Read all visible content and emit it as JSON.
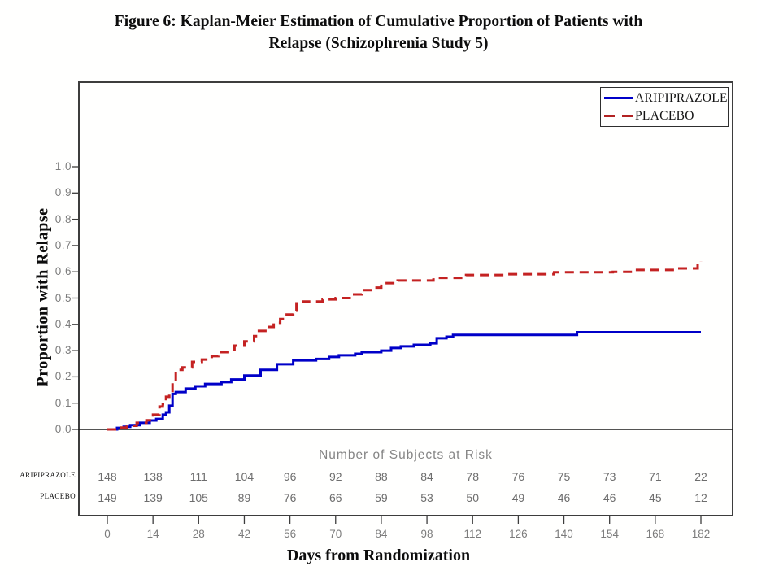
{
  "figure": {
    "title_line1": "Figure 6:  Kaplan-Meier Estimation of Cumulative Proportion of Patients with",
    "title_line2": "Relapse (Schizophrenia Study 5)"
  },
  "chart_data": {
    "type": "line",
    "subtype": "kaplan-meier-step",
    "title": "Kaplan-Meier Estimation of Cumulative Proportion of Patients with Relapse (Schizophrenia Study 5)",
    "xlabel": "Days from Randomization",
    "ylabel": "Proportion with Relapse",
    "xlim": [
      0,
      182
    ],
    "ylim": [
      0.0,
      1.0
    ],
    "grid": false,
    "legend_position": "top-right",
    "x_ticks": [
      "0",
      "14",
      "28",
      "42",
      "56",
      "70",
      "84",
      "98",
      "112",
      "126",
      "140",
      "154",
      "168",
      "182"
    ],
    "y_ticks": [
      "1.0",
      "0.9",
      "0.8",
      "0.7",
      "0.6",
      "0.5",
      "0.4",
      "0.3",
      "0.2",
      "0.1",
      "0.0"
    ],
    "series": [
      {
        "name": "ARIPIPRAZOLE",
        "color": "#0000c8",
        "style": "solid",
        "steps": [
          [
            0,
            0
          ],
          [
            3,
            0.006
          ],
          [
            5,
            0.01
          ],
          [
            7,
            0.016
          ],
          [
            10,
            0.025
          ],
          [
            13,
            0.034
          ],
          [
            15,
            0.04
          ],
          [
            17,
            0.056
          ],
          [
            18,
            0.065
          ],
          [
            19,
            0.09
          ],
          [
            20,
            0.135
          ],
          [
            21,
            0.142
          ],
          [
            24,
            0.155
          ],
          [
            27,
            0.164
          ],
          [
            30,
            0.173
          ],
          [
            35,
            0.18
          ],
          [
            38,
            0.19
          ],
          [
            42,
            0.205
          ],
          [
            47,
            0.227
          ],
          [
            52,
            0.248
          ],
          [
            57,
            0.263
          ],
          [
            64,
            0.268
          ],
          [
            68,
            0.276
          ],
          [
            71,
            0.282
          ],
          [
            76,
            0.288
          ],
          [
            78,
            0.294
          ],
          [
            84,
            0.3
          ],
          [
            87,
            0.31
          ],
          [
            90,
            0.316
          ],
          [
            94,
            0.322
          ],
          [
            99,
            0.328
          ],
          [
            101,
            0.347
          ],
          [
            104,
            0.353
          ],
          [
            106,
            0.36
          ],
          [
            144,
            0.37
          ],
          [
            182,
            0.37
          ]
        ]
      },
      {
        "name": "PLACEBO",
        "color": "#c42222",
        "style": "dashed",
        "steps": [
          [
            0,
            0
          ],
          [
            3,
            0.007
          ],
          [
            6,
            0.014
          ],
          [
            9,
            0.025
          ],
          [
            12,
            0.035
          ],
          [
            14,
            0.056
          ],
          [
            16,
            0.087
          ],
          [
            17,
            0.096
          ],
          [
            18,
            0.124
          ],
          [
            19,
            0.133
          ],
          [
            20,
            0.18
          ],
          [
            21,
            0.227
          ],
          [
            23,
            0.236
          ],
          [
            26,
            0.257
          ],
          [
            29,
            0.266
          ],
          [
            32,
            0.279
          ],
          [
            34,
            0.294
          ],
          [
            37,
            0.303
          ],
          [
            39,
            0.319
          ],
          [
            42,
            0.335
          ],
          [
            45,
            0.355
          ],
          [
            46,
            0.375
          ],
          [
            49,
            0.39
          ],
          [
            51,
            0.406
          ],
          [
            53,
            0.42
          ],
          [
            55,
            0.437
          ],
          [
            57,
            0.452
          ],
          [
            58,
            0.48
          ],
          [
            60,
            0.487
          ],
          [
            66,
            0.495
          ],
          [
            70,
            0.5
          ],
          [
            75,
            0.514
          ],
          [
            78,
            0.53
          ],
          [
            82,
            0.54
          ],
          [
            84,
            0.557
          ],
          [
            89,
            0.567
          ],
          [
            100,
            0.577
          ],
          [
            110,
            0.588
          ],
          [
            122,
            0.591
          ],
          [
            137,
            0.598
          ],
          [
            155,
            0.6
          ],
          [
            162,
            0.607
          ],
          [
            175,
            0.613
          ],
          [
            181,
            0.635
          ],
          [
            182,
            0.638
          ]
        ]
      }
    ],
    "risk_table": {
      "title": "Number of Subjects at Risk",
      "days": [
        0,
        14,
        28,
        42,
        56,
        70,
        84,
        98,
        112,
        126,
        140,
        154,
        168,
        182
      ],
      "rows": [
        {
          "label": "ARIPIPRAZOLE",
          "counts": [
            148,
            138,
            111,
            104,
            96,
            92,
            88,
            84,
            78,
            76,
            75,
            73,
            71,
            22
          ]
        },
        {
          "label": "PLACEBO",
          "counts": [
            149,
            139,
            105,
            89,
            76,
            66,
            59,
            53,
            50,
            49,
            46,
            46,
            45,
            12
          ]
        }
      ]
    }
  },
  "colors": {
    "aripiprazole_line": "#0000c8",
    "placebo_line": "#c42222",
    "axis_text_gray": "#7c7c7c",
    "risk_text_gray": "#6d6d6d",
    "plot_border": "#3d3d3d"
  }
}
